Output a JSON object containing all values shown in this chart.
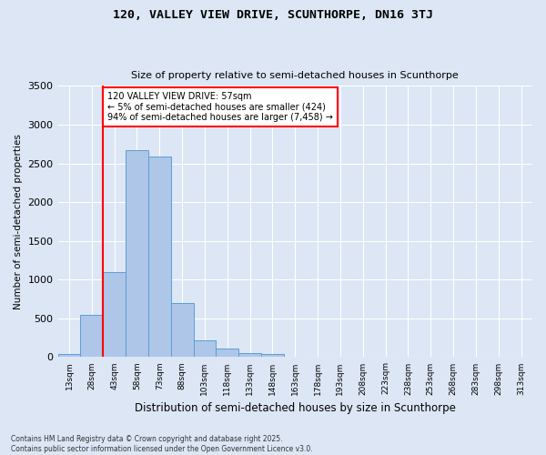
{
  "title1": "120, VALLEY VIEW DRIVE, SCUNTHORPE, DN16 3TJ",
  "title2": "Size of property relative to semi-detached houses in Scunthorpe",
  "xlabel": "Distribution of semi-detached houses by size in Scunthorpe",
  "ylabel": "Number of semi-detached properties",
  "bin_labels": [
    "13sqm",
    "28sqm",
    "43sqm",
    "58sqm",
    "73sqm",
    "88sqm",
    "103sqm",
    "118sqm",
    "133sqm",
    "148sqm",
    "163sqm",
    "178sqm",
    "193sqm",
    "208sqm",
    "223sqm",
    "238sqm",
    "253sqm",
    "268sqm",
    "283sqm",
    "298sqm",
    "313sqm"
  ],
  "bar_values": [
    40,
    540,
    1100,
    2670,
    2590,
    700,
    220,
    110,
    55,
    40,
    10,
    0,
    0,
    0,
    0,
    0,
    0,
    0,
    0,
    0,
    0
  ],
  "bar_color": "#aec6e8",
  "bar_edge_color": "#5a9fd4",
  "vline_color": "red",
  "vline_x": 1.5,
  "annotation_text": "120 VALLEY VIEW DRIVE: 57sqm\n← 5% of semi-detached houses are smaller (424)\n94% of semi-detached houses are larger (7,458) →",
  "annotation_box_color": "white",
  "annotation_box_edge": "red",
  "ylim": [
    0,
    3500
  ],
  "yticks": [
    0,
    500,
    1000,
    1500,
    2000,
    2500,
    3000,
    3500
  ],
  "bg_color": "#dce6f5",
  "grid_color": "white",
  "footer": "Contains HM Land Registry data © Crown copyright and database right 2025.\nContains public sector information licensed under the Open Government Licence v3.0."
}
